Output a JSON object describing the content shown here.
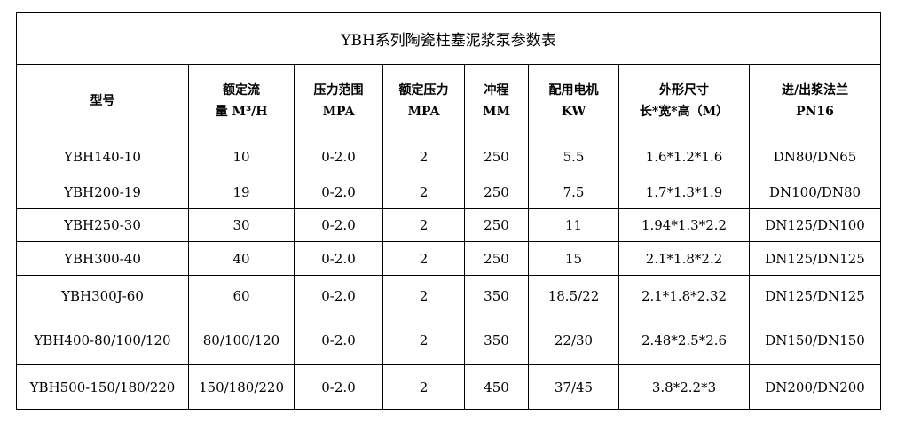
{
  "title": "YBH系列陶瓷柱塞泥浆泵参数表",
  "headers": [
    {
      "l1": "型号",
      "l2": ""
    },
    {
      "l1": "额定流",
      "l2": "量 M³/H"
    },
    {
      "l1": "压力范围",
      "l2": "MPA"
    },
    {
      "l1": "额定压力",
      "l2": "MPA"
    },
    {
      "l1": "冲程",
      "l2": "MM"
    },
    {
      "l1": "配用电机",
      "l2": "KW"
    },
    {
      "l1": "外形尺寸",
      "l2": "长*宽*高（M）"
    },
    {
      "l1": "进/出浆法兰",
      "l2": "PN16"
    }
  ],
  "rows": [
    [
      "YBH140-10",
      "10",
      "0-2.0",
      "2",
      "250",
      "5.5",
      "1.6*1.2*1.6",
      "DN80/DN65"
    ],
    [
      "YBH200-19",
      "19",
      "0-2.0",
      "2",
      "250",
      "7.5",
      "1.7*1.3*1.9",
      "DN100/DN80"
    ],
    [
      "YBH250-30",
      "30",
      "0-2.0",
      "2",
      "250",
      "11",
      "1.94*1.3*2.2",
      "DN125/DN100"
    ],
    [
      "YBH300-40",
      "40",
      "0-2.0",
      "2",
      "250",
      "15",
      "2.1*1.8*2.2",
      "DN125/DN125"
    ],
    [
      "YBH300J-60",
      "60",
      "0-2.0",
      "2",
      "350",
      "18.5/22",
      "2.1*1.8*2.32",
      "DN125/DN125"
    ],
    [
      "YBH400-80/100/120",
      "80/100/120",
      "0-2.0",
      "2",
      "350",
      "22/30",
      "2.48*2.5*2.6",
      "DN150/DN150"
    ],
    [
      "YBH500-150/180/220",
      "150/180/220",
      "0-2.0",
      "2",
      "450",
      "37/45",
      "3.8*2.2*3",
      "DN200/DN200"
    ]
  ]
}
